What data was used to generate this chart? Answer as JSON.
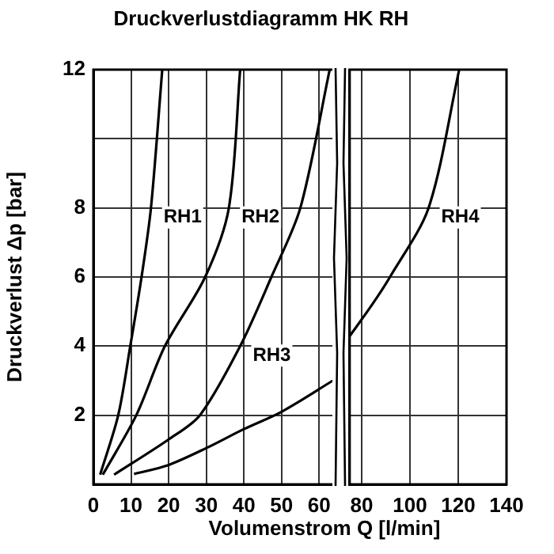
{
  "chart_data": [
    {
      "type": "line",
      "title": "Druckverlustdiagramm HK RH",
      "ylabel": "Druckverlust Δp [bar]",
      "xlim": [
        0,
        64
      ],
      "xticks": [
        0,
        10,
        20,
        30,
        40,
        50,
        60
      ],
      "ylim": [
        0,
        12
      ],
      "yticks": [
        {
          "value": 0,
          "label": null
        },
        2,
        4,
        6,
        8,
        {
          "value": 10,
          "label": null
        },
        12
      ],
      "grid": true,
      "legend": false,
      "marker": "none",
      "line_style": "solid",
      "series": [
        {
          "name": "RH1",
          "color": "#000000",
          "x": [
            1.8,
            6.6,
            9.8,
            12.8,
            15.3,
            18.3
          ],
          "values": [
            0.28,
            2,
            4,
            6,
            8,
            12
          ]
        },
        {
          "name": "RH2",
          "color": "#000000",
          "x": [
            2.5,
            11.4,
            19,
            29.7,
            36,
            39
          ],
          "values": [
            0.28,
            2,
            4,
            6,
            8,
            12
          ]
        },
        {
          "name": "RH3",
          "color": "#000000",
          "x": [
            5.5,
            20,
            28.3,
            39,
            47.3,
            55,
            62.8
          ],
          "values": [
            0.28,
            1.3,
            2,
            4,
            6,
            8,
            12
          ]
        },
        {
          "color": "#000000",
          "x": [
            10.8,
            19.7,
            30,
            40,
            50,
            63.6
          ],
          "values": [
            0.3,
            0.55,
            1.05,
            1.6,
            2.1,
            3.0
          ]
        }
      ]
    },
    {
      "type": "line",
      "xlabel": "Volumenstrom Q [l/min]",
      "xlim": [
        75,
        140
      ],
      "xticks": [
        80,
        100,
        120,
        140
      ],
      "ylim": [
        0,
        12
      ],
      "yticks": [
        0,
        2,
        4,
        6,
        8,
        10,
        12
      ],
      "tick_labels": "x",
      "grid": true,
      "legend": false,
      "marker": "none",
      "line_style": "solid",
      "series": [
        {
          "name": "RH4",
          "color": "#000000",
          "x": [
            75.1,
            84.3,
            91.7,
            107.7,
            120.4
          ],
          "values": [
            4.3,
            5.2,
            6,
            8,
            12
          ]
        }
      ]
    }
  ]
}
